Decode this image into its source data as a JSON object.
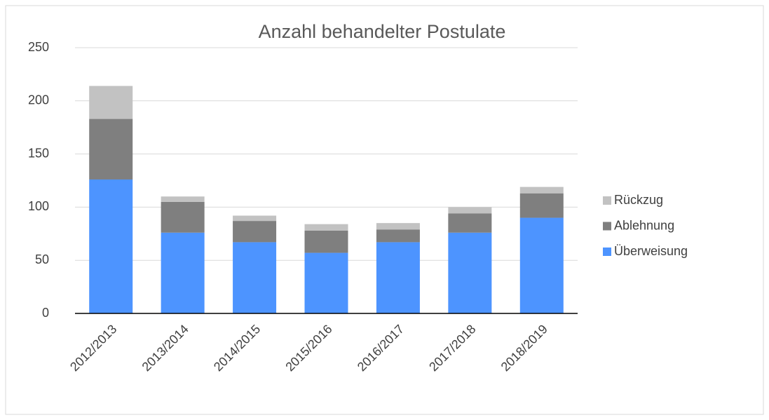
{
  "chart_data": {
    "type": "stacked_bar",
    "title": "Anzahl behandelter Postulate",
    "categories": [
      "2012/2013",
      "2013/2014",
      "2014/2015",
      "2015/2016",
      "2016/2017",
      "2017/2018",
      "2018/2019"
    ],
    "series": [
      {
        "name": "Überweisung",
        "color": "#4d94ff",
        "values": [
          126,
          76,
          67,
          57,
          67,
          76,
          90
        ]
      },
      {
        "name": "Ablehnung",
        "color": "#7f7f7f",
        "values": [
          57,
          29,
          20,
          21,
          12,
          18,
          23
        ]
      },
      {
        "name": "Rückzug",
        "color": "#c2c2c2",
        "values": [
          31,
          5,
          5,
          6,
          6,
          6,
          6
        ]
      }
    ],
    "ylim": [
      0,
      250
    ],
    "yticks": [
      0,
      50,
      100,
      150,
      200,
      250
    ],
    "grid": true,
    "legend": "right"
  }
}
